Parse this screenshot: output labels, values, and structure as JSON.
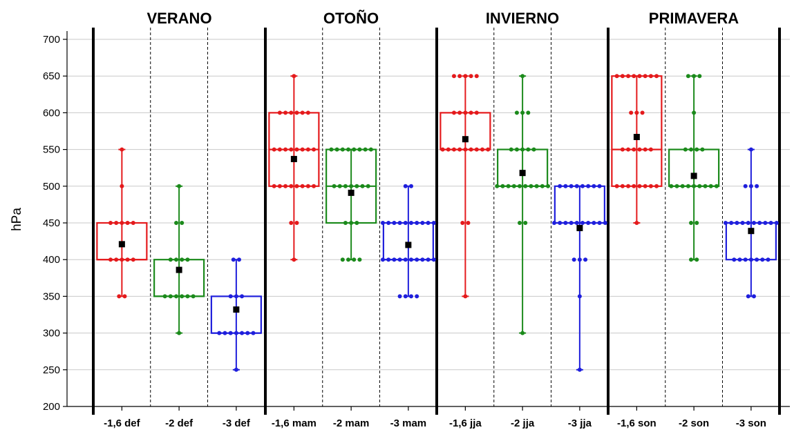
{
  "chart_data": {
    "type": "box",
    "ylabel": "hPa",
    "ylim": [
      200,
      700
    ],
    "yticks": [
      200,
      250,
      300,
      350,
      400,
      450,
      500,
      550,
      600,
      650,
      700
    ],
    "grid": "horizontal",
    "colors": {
      "-1,6": "#e41a1c",
      "-2": "#1b8a1b",
      "-3": "#1f1fdc",
      "mean": "#000000"
    },
    "seasons": [
      {
        "label": "VERANO",
        "categories": [
          "-1,6 def",
          "-2 def",
          "-3 def"
        ]
      },
      {
        "label": "OTOÑO",
        "categories": [
          "-1,6 mam",
          "-2 mam",
          "-3 mam"
        ]
      },
      {
        "label": "INVIERNO",
        "categories": [
          "-1,6 jja",
          "-2 jja",
          "-3 jja"
        ]
      },
      {
        "label": "PRIMAVERA",
        "categories": [
          "-1,6 son",
          "-2 son",
          "-3 son"
        ]
      }
    ],
    "boxes": [
      {
        "category": "-1,6 def",
        "min": 350,
        "q1": 400,
        "q3": 450,
        "max": 550,
        "median": 400,
        "mean": 421,
        "points": [
          [
            350,
            2
          ],
          [
            400,
            5
          ],
          [
            450,
            5
          ],
          [
            500,
            1
          ],
          [
            550,
            1
          ]
        ]
      },
      {
        "category": "-2 def",
        "min": 300,
        "q1": 350,
        "q3": 400,
        "max": 500,
        "median": 350,
        "mean": 386,
        "points": [
          [
            300,
            1
          ],
          [
            350,
            6
          ],
          [
            400,
            4
          ],
          [
            450,
            2
          ],
          [
            500,
            1
          ]
        ]
      },
      {
        "category": "-3 def",
        "min": 250,
        "q1": 300,
        "q3": 350,
        "max": 400,
        "median": 300,
        "mean": 332,
        "points": [
          [
            250,
            1
          ],
          [
            300,
            7
          ],
          [
            350,
            3
          ],
          [
            400,
            2
          ]
        ]
      },
      {
        "category": "-1,6 mam",
        "min": 400,
        "q1": 500,
        "q3": 600,
        "max": 650,
        "median": 550,
        "mean": 537,
        "points": [
          [
            400,
            1
          ],
          [
            450,
            2
          ],
          [
            500,
            8
          ],
          [
            550,
            8
          ],
          [
            600,
            6
          ],
          [
            650,
            1
          ]
        ]
      },
      {
        "category": "-2 mam",
        "min": 400,
        "q1": 450,
        "q3": 550,
        "max": 550,
        "median": 500,
        "mean": 491,
        "points": [
          [
            400,
            4
          ],
          [
            450,
            3
          ],
          [
            500,
            7
          ],
          [
            550,
            8
          ]
        ]
      },
      {
        "category": "-3 mam",
        "min": 350,
        "q1": 400,
        "q3": 450,
        "max": 500,
        "median": 400,
        "mean": 420,
        "points": [
          [
            350,
            4
          ],
          [
            400,
            10
          ],
          [
            450,
            10
          ],
          [
            500,
            2
          ]
        ]
      },
      {
        "category": "-1,6 jja",
        "min": 350,
        "q1": 550,
        "q3": 600,
        "max": 650,
        "median": 550,
        "mean": 564,
        "points": [
          [
            350,
            1
          ],
          [
            450,
            2
          ],
          [
            550,
            9
          ],
          [
            600,
            5
          ],
          [
            650,
            5
          ]
        ]
      },
      {
        "category": "-2 jja",
        "min": 300,
        "q1": 500,
        "q3": 550,
        "max": 650,
        "median": 500,
        "mean": 518,
        "points": [
          [
            300,
            1
          ],
          [
            450,
            2
          ],
          [
            500,
            10
          ],
          [
            550,
            5
          ],
          [
            600,
            3
          ],
          [
            650,
            1
          ]
        ]
      },
      {
        "category": "-3 jja",
        "min": 250,
        "q1": 450,
        "q3": 500,
        "max": 500,
        "median": 450,
        "mean": 443,
        "points": [
          [
            250,
            1
          ],
          [
            350,
            1
          ],
          [
            400,
            3
          ],
          [
            450,
            10
          ],
          [
            500,
            8
          ]
        ]
      },
      {
        "category": "-1,6 son",
        "min": 450,
        "q1": 500,
        "q3": 650,
        "max": 650,
        "median": 550,
        "mean": 567,
        "points": [
          [
            450,
            1
          ],
          [
            500,
            8
          ],
          [
            550,
            6
          ],
          [
            600,
            3
          ],
          [
            650,
            8
          ]
        ]
      },
      {
        "category": "-2 son",
        "min": 400,
        "q1": 500,
        "q3": 550,
        "max": 650,
        "median": 500,
        "mean": 514,
        "points": [
          [
            400,
            2
          ],
          [
            450,
            2
          ],
          [
            500,
            9
          ],
          [
            550,
            4
          ],
          [
            600,
            1
          ],
          [
            650,
            3
          ]
        ]
      },
      {
        "category": "-3 son",
        "min": 350,
        "q1": 400,
        "q3": 450,
        "max": 550,
        "median": 450,
        "mean": 439,
        "points": [
          [
            350,
            2
          ],
          [
            400,
            7
          ],
          [
            450,
            10
          ],
          [
            500,
            3
          ],
          [
            550,
            1
          ]
        ]
      }
    ]
  }
}
